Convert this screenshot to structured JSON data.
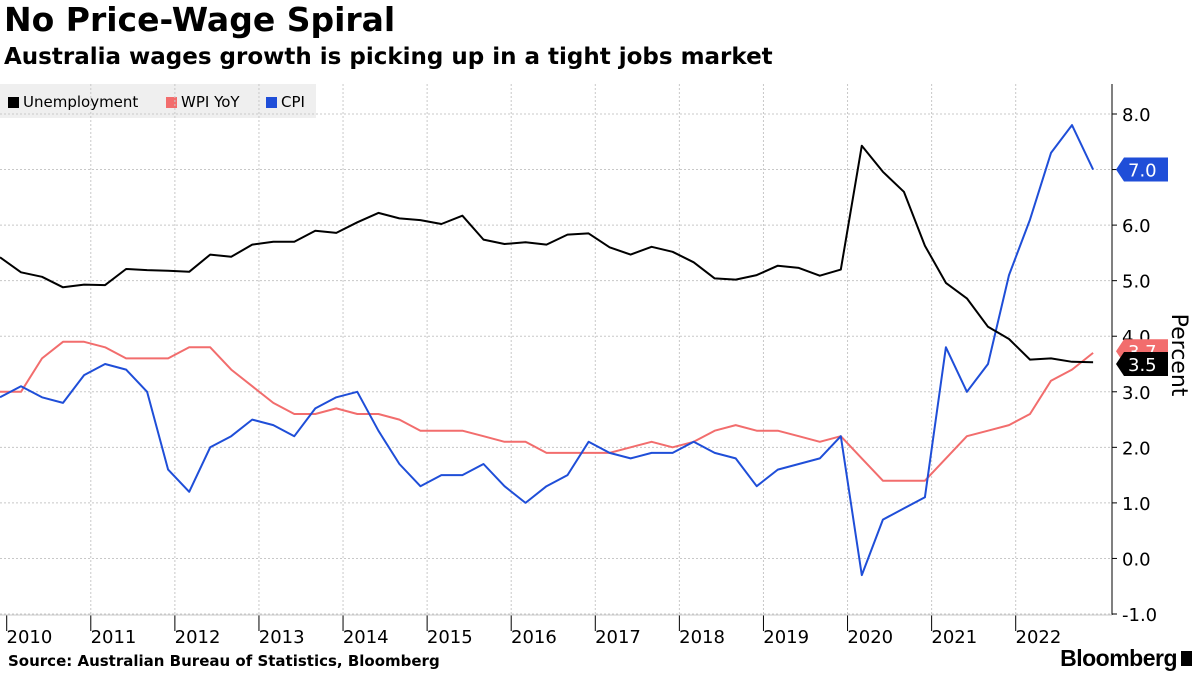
{
  "title": "No Price-Wage Spiral",
  "subtitle": "Australia wages growth is picking up in a tight jobs market",
  "legend": [
    {
      "label": "Unemployment",
      "color": "#000000"
    },
    {
      "label": "WPI YoY",
      "color": "#f26d6d"
    },
    {
      "label": "CPI",
      "color": "#1f4ed8"
    }
  ],
  "source": "Source: Australian Bureau of Statistics, Bloomberg",
  "brand": "Bloomberg",
  "chart_data": {
    "type": "line",
    "title": "No Price-Wage Spiral",
    "subtitle": "Australia wages growth is picking up in a tight jobs market",
    "ylabel": "Percent",
    "ylim": [
      -1.0,
      8.5
    ],
    "xlim": [
      2009.75,
      2022.75
    ],
    "y_ticks": [
      "-1.0",
      "0.0",
      "1.0",
      "2.0",
      "3.0",
      "4.0",
      "5.0",
      "6.0",
      "7.0",
      "8.0"
    ],
    "x_ticks": [
      "2010",
      "2011",
      "2012",
      "2013",
      "2014",
      "2015",
      "2016",
      "2017",
      "2018",
      "2019",
      "2020",
      "2021",
      "2022"
    ],
    "grid": true,
    "legend_position": "top-left",
    "y_axis_side": "right",
    "series": [
      {
        "name": "Unemployment",
        "color": "#000000",
        "last_value_label": "3.5",
        "x": [
          2009.75,
          2010.0,
          2010.25,
          2010.5,
          2010.75,
          2011.0,
          2011.25,
          2011.5,
          2011.75,
          2012.0,
          2012.25,
          2012.5,
          2012.75,
          2013.0,
          2013.25,
          2013.5,
          2013.75,
          2014.0,
          2014.25,
          2014.5,
          2014.75,
          2015.0,
          2015.25,
          2015.5,
          2015.75,
          2016.0,
          2016.25,
          2016.5,
          2016.75,
          2017.0,
          2017.25,
          2017.5,
          2017.75,
          2018.0,
          2018.25,
          2018.5,
          2018.75,
          2019.0,
          2019.25,
          2019.5,
          2019.75,
          2020.0,
          2020.25,
          2020.5,
          2020.75,
          2021.0,
          2021.25,
          2021.5,
          2021.75,
          2022.0,
          2022.25,
          2022.5,
          2022.75
        ],
        "values": [
          5.42,
          5.15,
          5.07,
          4.88,
          4.93,
          4.92,
          5.21,
          5.19,
          5.18,
          5.16,
          5.47,
          5.43,
          5.65,
          5.7,
          5.7,
          5.9,
          5.86,
          6.05,
          6.22,
          6.12,
          6.09,
          6.02,
          6.17,
          5.74,
          5.66,
          5.69,
          5.65,
          5.83,
          5.85,
          5.6,
          5.47,
          5.61,
          5.52,
          5.33,
          5.04,
          5.02,
          5.1,
          5.27,
          5.23,
          5.09,
          5.2,
          7.43,
          6.96,
          6.6,
          5.63,
          4.96,
          4.68,
          4.17,
          3.95,
          3.58,
          3.6,
          3.54,
          3.53
        ]
      },
      {
        "name": "WPI YoY",
        "color": "#f26d6d",
        "last_value_label": "3.7",
        "x": [
          2009.75,
          2010.0,
          2010.25,
          2010.5,
          2010.75,
          2011.0,
          2011.25,
          2011.5,
          2011.75,
          2012.0,
          2012.25,
          2012.5,
          2012.75,
          2013.0,
          2013.25,
          2013.5,
          2013.75,
          2014.0,
          2014.25,
          2014.5,
          2014.75,
          2015.0,
          2015.25,
          2015.5,
          2015.75,
          2016.0,
          2016.25,
          2016.5,
          2016.75,
          2017.0,
          2017.25,
          2017.5,
          2017.75,
          2018.0,
          2018.25,
          2018.5,
          2018.75,
          2019.0,
          2019.25,
          2019.5,
          2019.75,
          2020.0,
          2020.25,
          2020.5,
          2020.75,
          2021.0,
          2021.25,
          2021.5,
          2021.75,
          2022.0,
          2022.25,
          2022.5,
          2022.75
        ],
        "values": [
          3.0,
          3.0,
          3.6,
          3.9,
          3.9,
          3.8,
          3.6,
          3.6,
          3.6,
          3.8,
          3.8,
          3.4,
          3.1,
          2.8,
          2.6,
          2.6,
          2.7,
          2.6,
          2.6,
          2.5,
          2.3,
          2.3,
          2.3,
          2.2,
          2.1,
          2.1,
          1.9,
          1.9,
          1.9,
          1.9,
          2.0,
          2.1,
          2.0,
          2.1,
          2.3,
          2.4,
          2.3,
          2.3,
          2.2,
          2.1,
          2.2,
          1.8,
          1.4,
          1.4,
          1.4,
          1.8,
          2.2,
          2.3,
          2.4,
          2.6,
          3.2,
          3.4,
          3.7
        ]
      },
      {
        "name": "CPI",
        "color": "#1f4ed8",
        "last_value_label": "7.0",
        "x": [
          2009.75,
          2010.0,
          2010.25,
          2010.5,
          2010.75,
          2011.0,
          2011.25,
          2011.5,
          2011.75,
          2012.0,
          2012.25,
          2012.5,
          2012.75,
          2013.0,
          2013.25,
          2013.5,
          2013.75,
          2014.0,
          2014.25,
          2014.5,
          2014.75,
          2015.0,
          2015.25,
          2015.5,
          2015.75,
          2016.0,
          2016.25,
          2016.5,
          2016.75,
          2017.0,
          2017.25,
          2017.5,
          2017.75,
          2018.0,
          2018.25,
          2018.5,
          2018.75,
          2019.0,
          2019.25,
          2019.5,
          2019.75,
          2020.0,
          2020.25,
          2020.5,
          2020.75,
          2021.0,
          2021.25,
          2021.5,
          2021.75,
          2022.0,
          2022.25,
          2022.5,
          2022.75
        ],
        "values": [
          2.9,
          3.1,
          2.9,
          2.8,
          3.3,
          3.5,
          3.4,
          3.0,
          1.6,
          1.2,
          2.0,
          2.2,
          2.5,
          2.4,
          2.2,
          2.7,
          2.9,
          3.0,
          2.3,
          1.7,
          1.3,
          1.5,
          1.5,
          1.7,
          1.3,
          1.0,
          1.3,
          1.5,
          2.1,
          1.9,
          1.8,
          1.9,
          1.9,
          2.1,
          1.9,
          1.8,
          1.3,
          1.6,
          1.7,
          1.8,
          2.2,
          -0.3,
          0.7,
          0.9,
          1.1,
          3.8,
          3.0,
          3.5,
          5.1,
          6.1,
          7.3,
          7.8,
          7.0
        ]
      }
    ]
  }
}
